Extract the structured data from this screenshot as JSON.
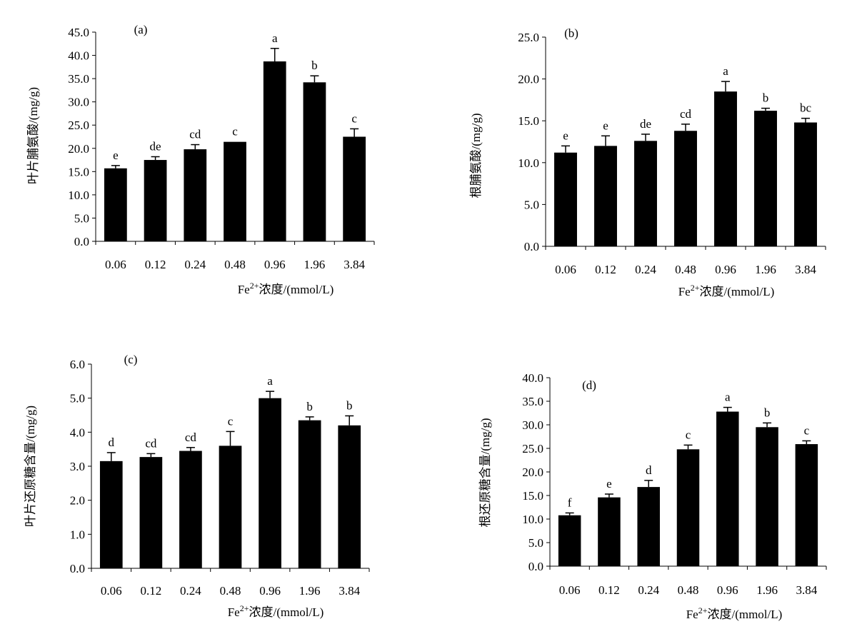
{
  "chart_data": [
    {
      "type": "bar",
      "panel": "(a)",
      "categories": [
        "0.06",
        "0.12",
        "0.24",
        "0.48",
        "0.96",
        "1.96",
        "3.84"
      ],
      "values": [
        15.7,
        17.5,
        19.8,
        21.4,
        38.7,
        34.2,
        22.5
      ],
      "errors": [
        0.6,
        0.7,
        1.0,
        0.0,
        2.8,
        1.4,
        1.7
      ],
      "significance": [
        "e",
        "de",
        "cd",
        "c",
        "a",
        "b",
        "c"
      ],
      "ylabel": "叶片脯氨酸/(mg/g)",
      "xlabel_prefix": "Fe",
      "xlabel_sup": "2+",
      "xlabel_suffix": "浓度/(mmol/L)",
      "ylim": [
        0,
        45
      ],
      "yticks": [
        "0.0",
        "5.0",
        "10.0",
        "15.0",
        "20.0",
        "25.0",
        "30.0",
        "35.0",
        "40.0",
        "45.0"
      ],
      "grid": false,
      "bar_color": "#000000"
    },
    {
      "type": "bar",
      "panel": "(b)",
      "categories": [
        "0.06",
        "0.12",
        "0.24",
        "0.48",
        "0.96",
        "1.96",
        "3.84"
      ],
      "values": [
        11.2,
        12.0,
        12.6,
        13.8,
        18.5,
        16.2,
        14.8
      ],
      "errors": [
        0.8,
        1.2,
        0.8,
        0.8,
        1.2,
        0.3,
        0.5
      ],
      "significance": [
        "e",
        "e",
        "de",
        "cd",
        "a",
        "b",
        "bc"
      ],
      "ylabel": "根脯氨酸/(mg/g)",
      "xlabel_prefix": "Fe",
      "xlabel_sup": "2+",
      "xlabel_suffix": "浓度/(mmol/L)",
      "ylim": [
        0,
        25
      ],
      "yticks": [
        "0.0",
        "5.0",
        "10.0",
        "15.0",
        "20.0",
        "25.0"
      ],
      "grid": false,
      "bar_color": "#000000"
    },
    {
      "type": "bar",
      "panel": "(c)",
      "categories": [
        "0.06",
        "0.12",
        "0.24",
        "0.48",
        "0.96",
        "1.96",
        "3.84"
      ],
      "values": [
        3.15,
        3.27,
        3.45,
        3.6,
        5.0,
        4.35,
        4.2
      ],
      "errors": [
        0.25,
        0.1,
        0.1,
        0.42,
        0.2,
        0.1,
        0.28
      ],
      "significance": [
        "d",
        "cd",
        "cd",
        "c",
        "a",
        "b",
        "b"
      ],
      "ylabel": "叶片还原糖含量/(mg/g)",
      "xlabel_prefix": "Fe",
      "xlabel_sup": "2+",
      "xlabel_suffix": "浓度/(mmol/L)",
      "ylim": [
        0,
        6
      ],
      "yticks": [
        "0.0",
        "1.0",
        "2.0",
        "3.0",
        "4.0",
        "5.0",
        "6.0"
      ],
      "grid": false,
      "bar_color": "#000000"
    },
    {
      "type": "bar",
      "panel": "(d)",
      "categories": [
        "0.06",
        "0.12",
        "0.24",
        "0.48",
        "0.96",
        "1.96",
        "3.84"
      ],
      "values": [
        10.8,
        14.6,
        16.8,
        24.8,
        32.8,
        29.5,
        25.9
      ],
      "errors": [
        0.5,
        0.7,
        1.4,
        0.9,
        0.9,
        0.9,
        0.7
      ],
      "significance": [
        "f",
        "e",
        "d",
        "c",
        "a",
        "b",
        "c"
      ],
      "ylabel": "根还原糖含量/(mg/g)",
      "xlabel_prefix": "Fe",
      "xlabel_sup": "2+",
      "xlabel_suffix": "浓度/(mmol/L)",
      "ylim": [
        0,
        40
      ],
      "yticks": [
        "0.0",
        "5.0",
        "10.0",
        "15.0",
        "20.0",
        "25.0",
        "30.0",
        "35.0",
        "40.0"
      ],
      "grid": false,
      "bar_color": "#000000"
    }
  ]
}
